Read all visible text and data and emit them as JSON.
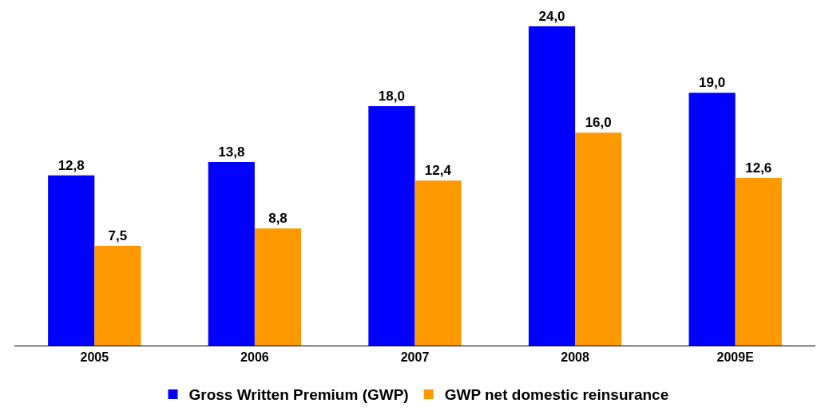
{
  "chart_data": {
    "type": "bar",
    "categories": [
      "2005",
      "2006",
      "2007",
      "2008",
      "2009E"
    ],
    "series": [
      {
        "name": "Gross Written Premium (GWP)",
        "color": "#0000ff",
        "values": [
          12.8,
          13.8,
          18.0,
          24.0,
          19.0
        ],
        "value_labels": [
          "12,8",
          "13,8",
          "18,0",
          "24,0",
          "19,0"
        ]
      },
      {
        "name": "GWP net domestic reinsurance",
        "color": "#ff9900",
        "values": [
          7.5,
          8.8,
          12.4,
          16.0,
          12.6
        ],
        "value_labels": [
          "7,5",
          "8,8",
          "12,4",
          "16,0",
          "12,6"
        ]
      }
    ],
    "grid": false,
    "legend": "bottom",
    "tick_labels": "x"
  }
}
